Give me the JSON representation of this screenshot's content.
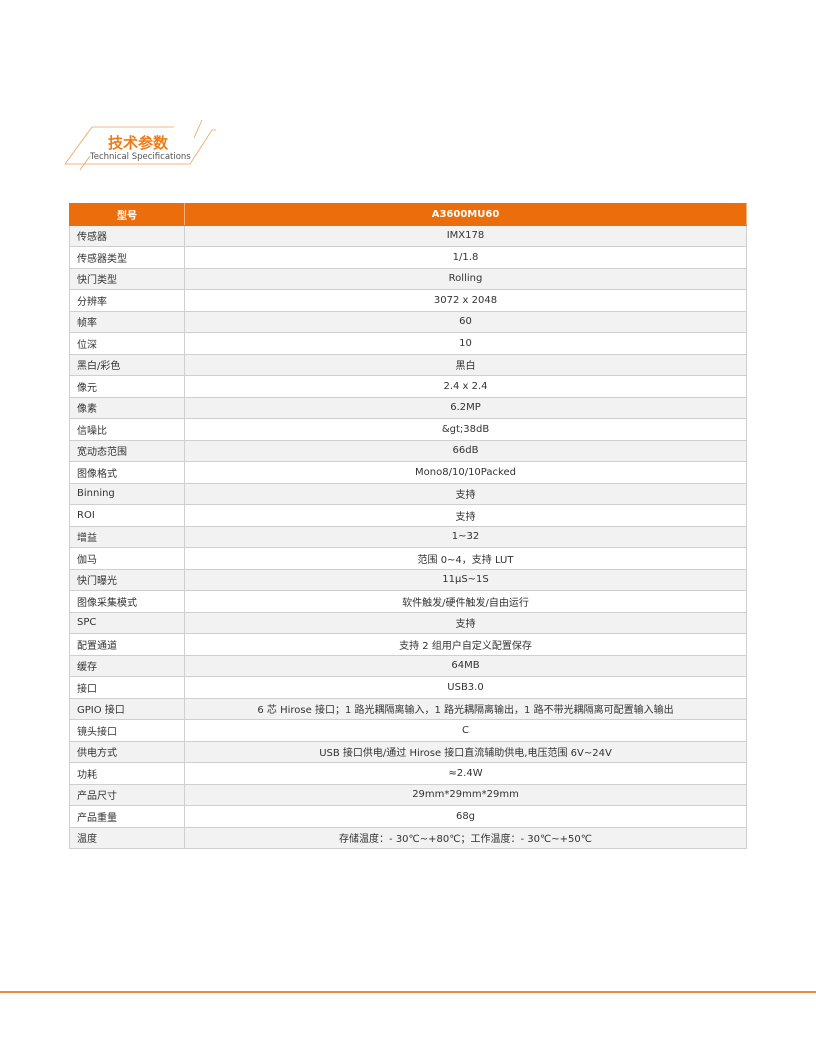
{
  "heading": {
    "title_cn": "技术参数",
    "title_en": "Technical Specifications"
  },
  "colors": {
    "accent": "#eb6d0c",
    "row_alt": "#f2f2f2"
  },
  "table": {
    "header": {
      "label": "型号",
      "value": "A3600MU60"
    },
    "rows": [
      {
        "label": "传感器",
        "value": "IMX178"
      },
      {
        "label": "传感器类型",
        "value": "1/1.8"
      },
      {
        "label": "快门类型",
        "value": "Rolling"
      },
      {
        "label": "分辨率",
        "value": "3072 x 2048"
      },
      {
        "label": "帧率",
        "value": "60"
      },
      {
        "label": "位深",
        "value": "10"
      },
      {
        "label": "黑白/彩色",
        "value": "黑白"
      },
      {
        "label": "像元",
        "value": "2.4 x 2.4"
      },
      {
        "label": "像素",
        "value": "6.2MP"
      },
      {
        "label": "信噪比",
        "value": "&gt;38dB"
      },
      {
        "label": "宽动态范围",
        "value": "66dB"
      },
      {
        "label": "图像格式",
        "value": "Mono8/10/10Packed"
      },
      {
        "label": "Binning",
        "value": "支持"
      },
      {
        "label": "ROI",
        "value": "支持"
      },
      {
        "label": "增益",
        "value": "1~32"
      },
      {
        "label": "伽马",
        "value": "范围 0~4，支持 LUT"
      },
      {
        "label": "快门曝光",
        "value": "11μS~1S"
      },
      {
        "label": "图像采集模式",
        "value": "软件触发/硬件触发/自由运行"
      },
      {
        "label": "SPC",
        "value": "支持"
      },
      {
        "label": "配置通道",
        "value": "支持 2 组用户自定义配置保存"
      },
      {
        "label": "缓存",
        "value": "64MB"
      },
      {
        "label": "接口",
        "value": "USB3.0"
      },
      {
        "label": "GPIO 接口",
        "value": "6 芯 Hirose 接口；1 路光耦隔离输入，1 路光耦隔离输出，1 路不带光耦隔离可配置输入输出"
      },
      {
        "label": "镜头接口",
        "value": "C"
      },
      {
        "label": "供电方式",
        "value": "USB 接口供电/通过 Hirose 接口直流辅助供电,电压范围 6V~24V"
      },
      {
        "label": "功耗",
        "value": "≈2.4W"
      },
      {
        "label": "产品尺寸",
        "value": "29mm*29mm*29mm"
      },
      {
        "label": "产品重量",
        "value": "68g"
      },
      {
        "label": "温度",
        "value": "存储温度：- 30℃~+80℃；工作温度：- 30℃~+50℃"
      }
    ]
  }
}
